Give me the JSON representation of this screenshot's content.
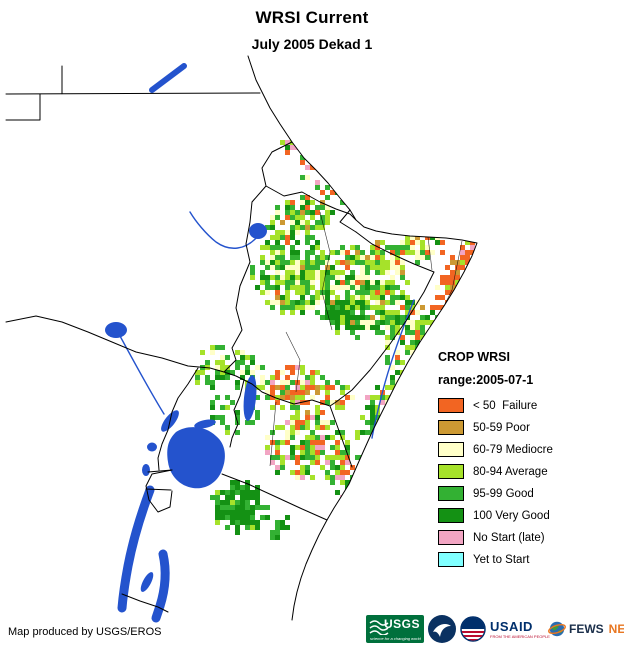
{
  "title": "WRSI Current",
  "subtitle": "July 2005 Dekad 1",
  "legend": {
    "heading": "CROP WRSI",
    "range_label": "range:2005-07-1",
    "items": [
      {
        "key": "failure",
        "label": "< 50  Failure",
        "color": "#F26522"
      },
      {
        "key": "poor",
        "label": "50-59 Poor",
        "color": "#CC9933"
      },
      {
        "key": "mediocre",
        "label": "60-79 Mediocre",
        "color": "#FFFFC8"
      },
      {
        "key": "average",
        "label": "80-94 Average",
        "color": "#A6E22A"
      },
      {
        "key": "good",
        "label": "95-99 Good",
        "color": "#33B133"
      },
      {
        "key": "verygood",
        "label": "100 Very Good",
        "color": "#149114"
      },
      {
        "key": "nostart",
        "label": "No Start (late)",
        "color": "#F2A5C3"
      },
      {
        "key": "yettostart",
        "label": "Yet to Start",
        "color": "#80FFFF"
      }
    ]
  },
  "map": {
    "background": "#FFFFFF",
    "border_color": "#000000",
    "water_color": "#2453CD"
  },
  "footer": {
    "credit": "Map produced by USGS/EROS"
  },
  "logos": {
    "usgs": {
      "name": "USGS",
      "tagline": "science for a changing world"
    },
    "noaa": {
      "icon": "noaa-emblem"
    },
    "usaid": {
      "name": "USAID",
      "tagline": "FROM THE AMERICAN PEOPLE"
    },
    "fewsnet": {
      "name_first": "FEWS",
      "name_second": "NET"
    }
  }
}
